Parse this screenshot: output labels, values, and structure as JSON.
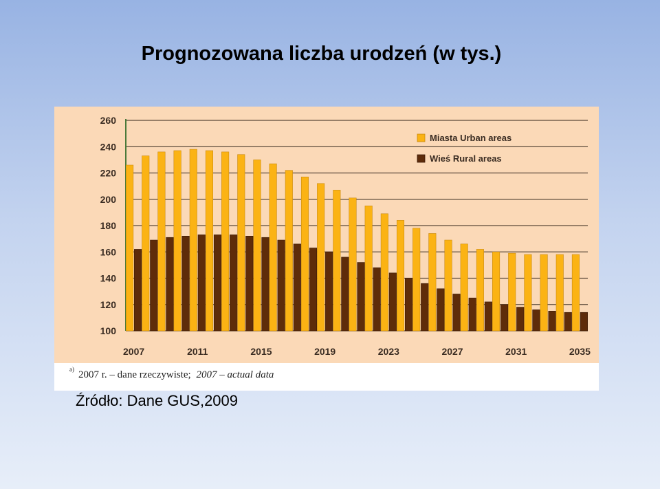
{
  "slide": {
    "title": "Prognozowana liczba urodzeń (w tys.)",
    "source": "Źródło: Dane GUS,2009"
  },
  "footnote": {
    "marker": "a)",
    "polish": "2007 r. – dane rzeczywiste;",
    "english": "2007 – actual data"
  },
  "colors": {
    "plot_background": "#fbd9b7",
    "urban": "#fbb314",
    "rural": "#5e2c0a",
    "gridline": "#5b4a3a",
    "axis_text": "#3a2c22"
  },
  "chart_data": {
    "type": "bar",
    "title": "",
    "xlabel": "",
    "ylabel": "",
    "ylim": [
      100,
      260
    ],
    "yticks": [
      100,
      120,
      140,
      160,
      180,
      200,
      220,
      240,
      260
    ],
    "grid": true,
    "legend_position": "top-right",
    "categories": [
      "2007",
      "2008",
      "2009",
      "2010",
      "2011",
      "2012",
      "2013",
      "2014",
      "2015",
      "2016",
      "2017",
      "2018",
      "2019",
      "2020",
      "2021",
      "2022",
      "2023",
      "2024",
      "2025",
      "2026",
      "2027",
      "2028",
      "2029",
      "2030",
      "2031",
      "2032",
      "2033",
      "2034",
      "2035"
    ],
    "xtick_labels": [
      "2007",
      "2011",
      "2015",
      "2019",
      "2023",
      "2027",
      "2031",
      "2035"
    ],
    "series": [
      {
        "name": "Miasta  Urban areas",
        "color": "#fbb314",
        "values": [
          226,
          233,
          236,
          237,
          238,
          237,
          236,
          234,
          230,
          227,
          222,
          217,
          212,
          207,
          201,
          195,
          189,
          184,
          178,
          174,
          169,
          166,
          162,
          160,
          159,
          158,
          158,
          158,
          158
        ]
      },
      {
        "name": "Wieś  Rural areas",
        "color": "#5e2c0a",
        "values": [
          162,
          169,
          171,
          172,
          173,
          173,
          173,
          172,
          171,
          169,
          166,
          163,
          160,
          156,
          152,
          148,
          144,
          140,
          136,
          132,
          128,
          125,
          122,
          120,
          118,
          116,
          115,
          114,
          114
        ]
      }
    ]
  }
}
